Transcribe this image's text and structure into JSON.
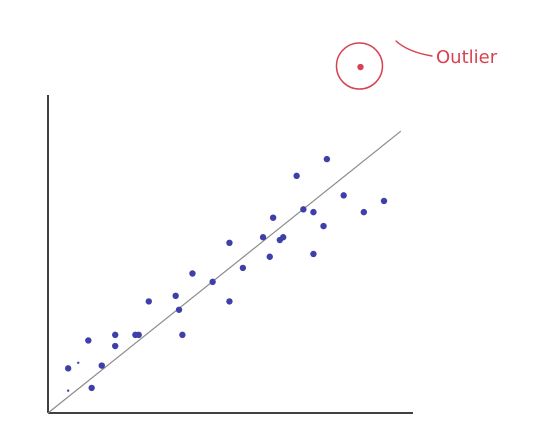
{
  "chart_data": {
    "type": "scatter",
    "title": "",
    "xlabel": "",
    "ylabel": "",
    "xlim": [
      0,
      100
    ],
    "ylim": [
      0,
      100
    ],
    "grid": false,
    "colors": {
      "points": "#3f3faa",
      "outlier": "#d94050",
      "trendline": "#8a8a8a",
      "axes": "#000000"
    },
    "series": [
      {
        "points": [
          [
            6,
            16
          ],
          [
            12,
            26
          ],
          [
            13,
            9
          ],
          [
            16,
            17
          ],
          [
            20,
            28
          ],
          [
            20,
            24
          ],
          [
            26,
            28
          ],
          [
            27,
            28
          ],
          [
            30,
            40
          ],
          [
            38,
            42
          ],
          [
            39,
            37
          ],
          [
            40,
            28
          ],
          [
            43,
            50
          ],
          [
            49,
            47
          ],
          [
            54,
            40
          ],
          [
            54,
            61
          ],
          [
            58,
            52
          ],
          [
            64,
            63
          ],
          [
            66,
            56
          ],
          [
            67,
            70
          ],
          [
            69,
            62
          ],
          [
            70,
            63
          ],
          [
            74,
            85
          ],
          [
            76,
            73
          ],
          [
            79,
            72
          ],
          [
            79,
            57
          ],
          [
            82,
            67
          ],
          [
            83,
            91
          ],
          [
            88,
            78
          ],
          [
            94,
            72
          ],
          [
            100,
            76
          ]
        ]
      },
      {
        "points": [
          [
            6,
            8
          ],
          [
            9,
            18
          ]
        ]
      }
    ],
    "trendline": {
      "from": [
        0,
        0
      ],
      "to": [
        105,
        101
      ]
    },
    "outlier": {
      "point": [
        93,
        124
      ],
      "label": "Outlier"
    }
  }
}
